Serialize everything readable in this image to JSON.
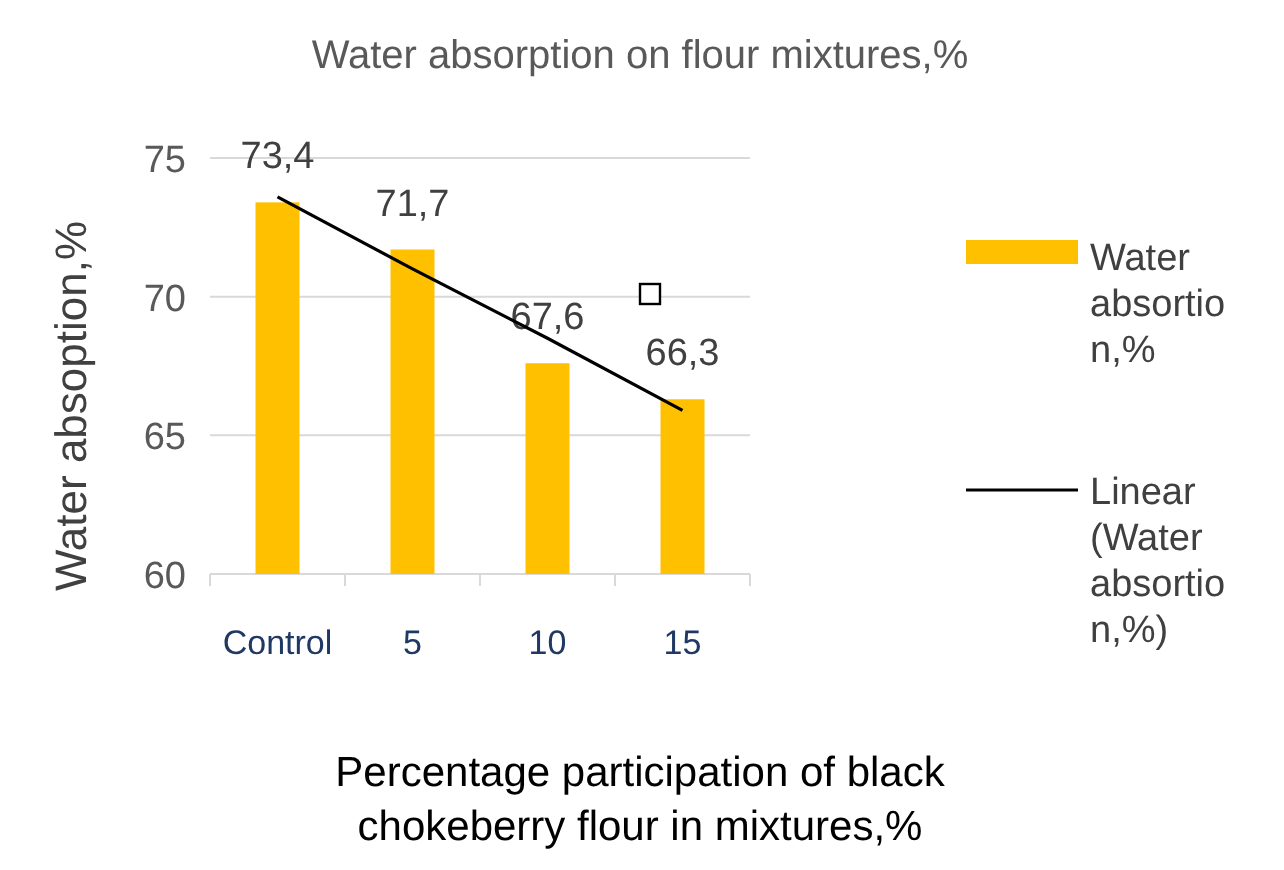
{
  "chart_data": {
    "type": "bar",
    "title": "Water absorption on flour mixtures,%",
    "xlabel": "Percentage participation of black chokeberry flour in mixtures,%",
    "ylabel": "Water absoption,%",
    "categories": [
      "Control",
      "5",
      "10",
      "15"
    ],
    "series": [
      {
        "name": "Water absortion,%",
        "color": "#ffc000",
        "values": [
          73.4,
          71.7,
          67.6,
          66.3
        ],
        "value_labels": [
          "73,4",
          "71,7",
          "67,6",
          "66,3"
        ]
      },
      {
        "name": "Linear (Water absortion,%)",
        "type": "line",
        "color": "#000000",
        "values": [
          73.6,
          71.0,
          68.5,
          65.9
        ]
      }
    ],
    "ylim": [
      60,
      75
    ],
    "yticks": [
      60,
      65,
      70,
      75
    ],
    "grid": "y",
    "legend": "right"
  }
}
